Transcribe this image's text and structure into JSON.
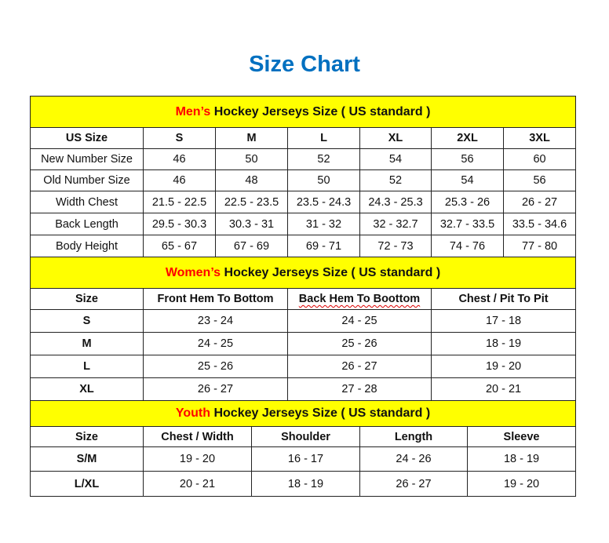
{
  "title": "Size Chart",
  "colors": {
    "title": "#0070c0",
    "header_bg": "#ffff00",
    "accent": "#ff0000"
  },
  "men": {
    "accent": "Men’s",
    "heading": " Hockey Jerseys Size ( US standard )",
    "columns": [
      "US Size",
      "S",
      "M",
      "L",
      "XL",
      "2XL",
      "3XL"
    ],
    "rows": [
      [
        "New Number Size",
        "46",
        "50",
        "52",
        "54",
        "56",
        "60"
      ],
      [
        "Old Number Size",
        "46",
        "48",
        "50",
        "52",
        "54",
        "56"
      ],
      [
        "Width Chest",
        "21.5 - 22.5",
        "22.5 - 23.5",
        "23.5 - 24.3",
        "24.3 - 25.3",
        "25.3 - 26",
        "26 - 27"
      ],
      [
        "Back Length",
        "29.5 - 30.3",
        "30.3 - 31",
        "31 - 32",
        "32 - 32.7",
        "32.7 - 33.5",
        "33.5 - 34.6"
      ],
      [
        "Body Height",
        "65 - 67",
        "67 - 69",
        "69 - 71",
        "72 - 73",
        "74 - 76",
        "77 - 80"
      ]
    ]
  },
  "women": {
    "accent": "Women’s",
    "heading": " Hockey Jerseys Size ( US standard )",
    "columns": [
      "Size",
      "Front Hem To Bottom",
      "Back Hem To Boottom",
      "Chest / Pit To Pit"
    ],
    "rows": [
      [
        "S",
        "23 - 24",
        "24 - 25",
        "17 - 18"
      ],
      [
        "M",
        "24 - 25",
        "25 - 26",
        "18 - 19"
      ],
      [
        "L",
        "25 - 26",
        "26 - 27",
        "19 - 20"
      ],
      [
        "XL",
        "26 - 27",
        "27 - 28",
        "20 - 21"
      ]
    ]
  },
  "youth": {
    "accent": "Youth",
    "heading": " Hockey Jerseys Size ( US standard )",
    "columns": [
      "Size",
      "Chest / Width",
      "Shoulder",
      "Length",
      "Sleeve"
    ],
    "rows": [
      [
        "S/M",
        "19 - 20",
        "16 - 17",
        "24 - 26",
        "18 - 19"
      ],
      [
        "L/XL",
        "20 - 21",
        "18 - 19",
        "26 - 27",
        "19 - 20"
      ]
    ]
  }
}
